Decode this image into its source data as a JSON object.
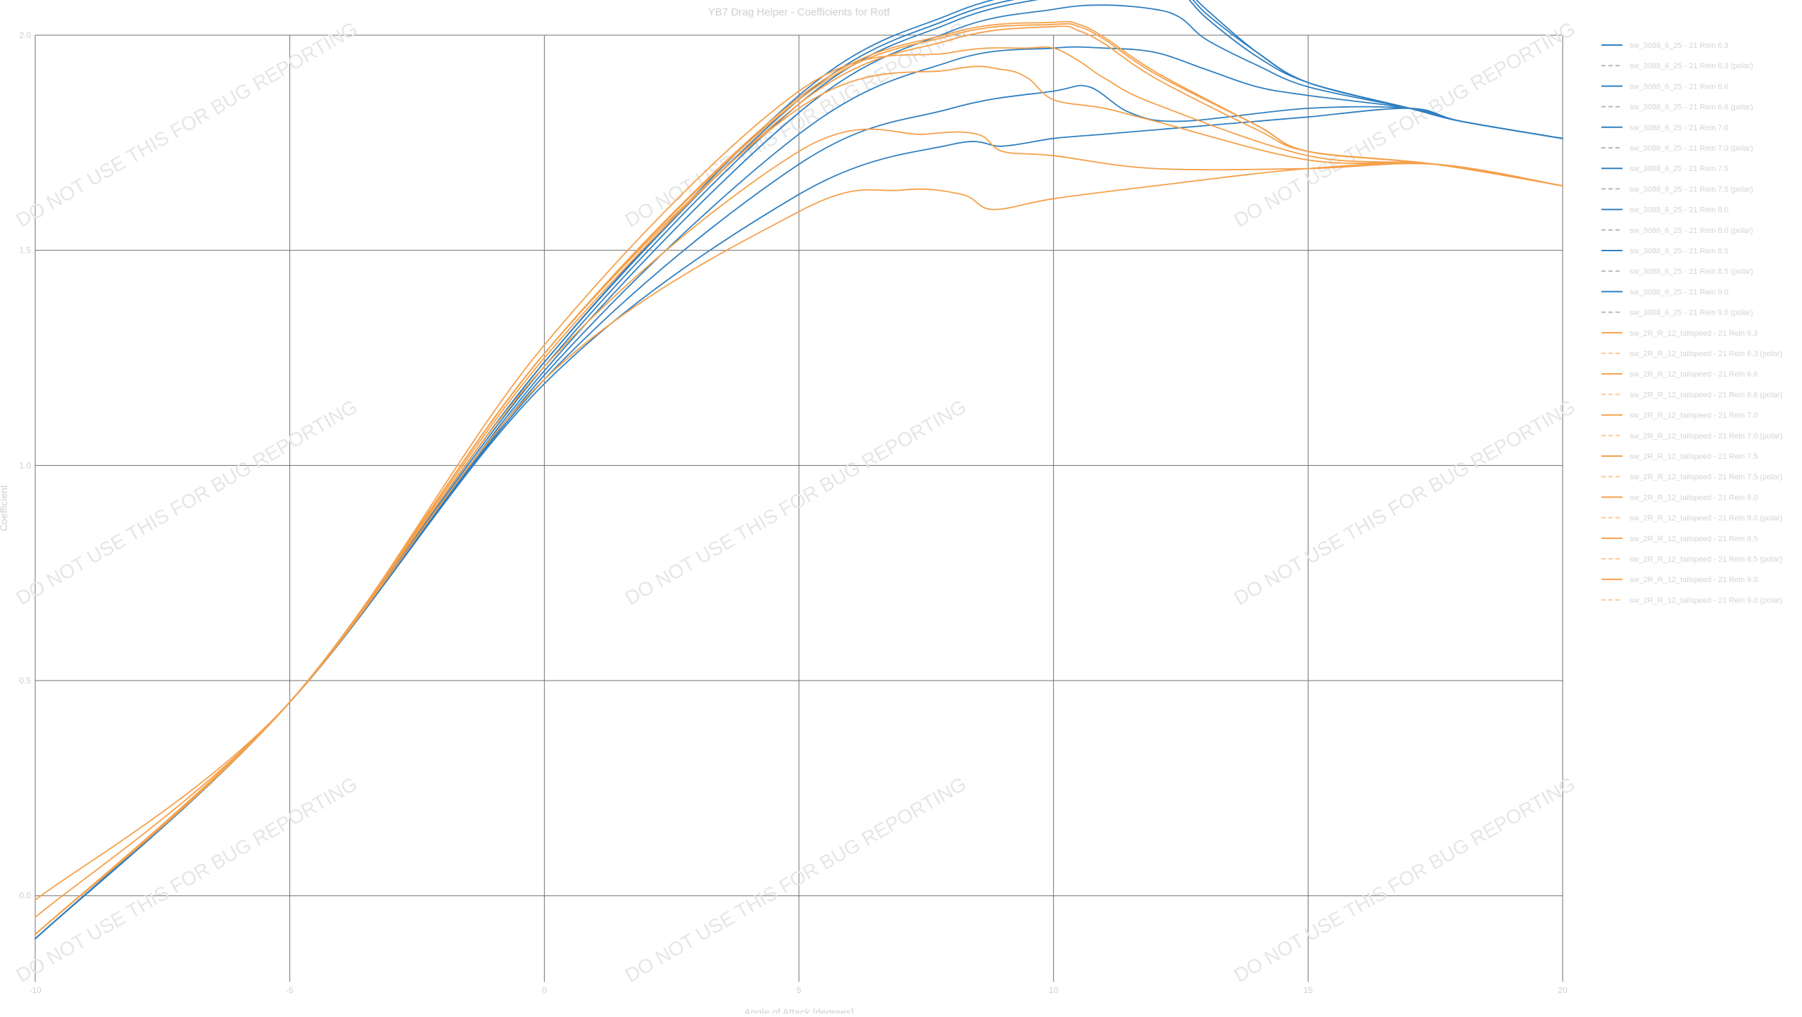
{
  "chart_data": {
    "type": "line",
    "title": "YB7 Drag Helper - Coefficients for Rotf",
    "xlabel": "Angle of Attack [degrees]",
    "ylabel": "Coefficient",
    "xlim": [
      -10,
      20
    ],
    "ylim": [
      -0.2,
      2.0
    ],
    "x_ticks": [
      -10,
      -5,
      0,
      5,
      10,
      15,
      20
    ],
    "y_ticks": [
      0.0,
      0.5,
      1.0,
      1.5,
      2.0
    ],
    "grid": true,
    "legend_position": "top-right",
    "watermark": "DO NOT USE THIS FOR BUG REPORTING",
    "colors": {
      "blue": "#2f7fc1",
      "orange": "#f5a04a",
      "gray": "#b8b8b8",
      "gridline": "#6f6f6f"
    },
    "series": [
      {
        "name": "sw_3088_6_25 - 21 Rein 6.3",
        "color": "#2f7fc1",
        "style": "solid",
        "points": [
          [
            -10,
            -0.1
          ],
          [
            -5,
            0.45
          ],
          [
            0,
            1.19
          ],
          [
            5,
            1.63
          ],
          [
            8,
            1.746
          ],
          [
            9,
            1.742
          ],
          [
            10,
            1.76
          ],
          [
            11,
            1.77
          ],
          [
            12,
            1.78
          ],
          [
            13,
            1.79
          ],
          [
            14,
            1.8
          ],
          [
            15,
            1.81
          ],
          [
            17,
            1.83
          ],
          [
            18,
            1.8
          ],
          [
            20,
            1.76
          ]
        ]
      },
      {
        "name": "sw_3088_6_25 - 21 Rein 6.3 (polar)",
        "color": "#b8b8b8",
        "style": "dashed",
        "points": []
      },
      {
        "name": "sw_3088_6_25 - 21 Rein 6.6",
        "color": "#2f7fc1",
        "style": "solid",
        "points": [
          [
            -10,
            -0.1
          ],
          [
            -5,
            0.45
          ],
          [
            0,
            1.2
          ],
          [
            5,
            1.7
          ],
          [
            8,
            1.83
          ],
          [
            10,
            1.87
          ],
          [
            10.7,
            1.88
          ],
          [
            11.5,
            1.82
          ],
          [
            12.5,
            1.8
          ],
          [
            15,
            1.83
          ],
          [
            17,
            1.83
          ],
          [
            18,
            1.8
          ],
          [
            20,
            1.76
          ]
        ]
      },
      {
        "name": "sw_3088_6_25 - 21 Rein 6.6 (polar)",
        "color": "#b8b8b8",
        "style": "dashed",
        "points": []
      },
      {
        "name": "sw_3088_6_25 - 21 Rein 7.0",
        "color": "#2f7fc1",
        "style": "solid",
        "points": [
          [
            -10,
            -0.1
          ],
          [
            -5,
            0.45
          ],
          [
            0,
            1.21
          ],
          [
            5,
            1.77
          ],
          [
            8,
            1.94
          ],
          [
            10,
            1.97
          ],
          [
            11,
            1.97
          ],
          [
            12,
            1.96
          ],
          [
            13,
            1.92
          ],
          [
            14,
            1.88
          ],
          [
            15,
            1.86
          ],
          [
            17,
            1.83
          ],
          [
            18,
            1.8
          ],
          [
            20,
            1.76
          ]
        ]
      },
      {
        "name": "sw_3088_6_25 - 21 Rein 7.0 (polar)",
        "color": "#b8b8b8",
        "style": "dashed",
        "points": []
      },
      {
        "name": "sw_3088_6_25 - 21 Rein 7.5",
        "color": "#2f7fc1",
        "style": "solid",
        "points": [
          [
            -10,
            -0.1
          ],
          [
            -5,
            0.45
          ],
          [
            0,
            1.22
          ],
          [
            5,
            1.82
          ],
          [
            8,
            2.01
          ],
          [
            10,
            2.06
          ],
          [
            11,
            2.07
          ],
          [
            12,
            2.06
          ],
          [
            12.5,
            2.04
          ],
          [
            13,
            1.99
          ],
          [
            14,
            1.93
          ],
          [
            15,
            1.88
          ],
          [
            17,
            1.83
          ],
          [
            18,
            1.8
          ],
          [
            20,
            1.76
          ]
        ]
      },
      {
        "name": "sw_3088_6_25 - 21 Rein 7.5 (polar)",
        "color": "#b8b8b8",
        "style": "dashed",
        "points": []
      },
      {
        "name": "sw_3088_6_25 - 21 Rein 8.0",
        "color": "#2f7fc1",
        "style": "solid",
        "points": [
          [
            -10,
            -0.1
          ],
          [
            -5,
            0.45
          ],
          [
            0,
            1.23
          ],
          [
            5,
            1.84
          ],
          [
            8,
            2.03
          ],
          [
            10,
            2.09
          ],
          [
            11,
            2.11
          ],
          [
            12,
            2.11
          ],
          [
            12.5,
            2.1
          ],
          [
            13,
            2.04
          ],
          [
            14,
            1.95
          ],
          [
            15,
            1.89
          ],
          [
            17,
            1.83
          ],
          [
            18,
            1.8
          ],
          [
            20,
            1.76
          ]
        ]
      },
      {
        "name": "sw_3088_6_25 - 21 Rein 8.0 (polar)",
        "color": "#b8b8b8",
        "style": "dashed",
        "points": []
      },
      {
        "name": "sw_3088_6_25 - 21 Rein 8.5",
        "color": "#2f7fc1",
        "style": "solid",
        "points": [
          [
            -10,
            -0.1
          ],
          [
            -5,
            0.45
          ],
          [
            0,
            1.24
          ],
          [
            5,
            1.85
          ],
          [
            8,
            2.04
          ],
          [
            10,
            2.1
          ],
          [
            11,
            2.12
          ],
          [
            12,
            2.12
          ],
          [
            12.5,
            2.11
          ],
          [
            13,
            2.05
          ],
          [
            14,
            1.96
          ],
          [
            15,
            1.89
          ],
          [
            17,
            1.83
          ],
          [
            18,
            1.8
          ],
          [
            20,
            1.76
          ]
        ]
      },
      {
        "name": "sw_3088_6_25 - 21 Rein 8.5 (polar)",
        "color": "#b8b8b8",
        "style": "dashed",
        "points": []
      },
      {
        "name": "sw_3088_6_25 - 21 Rein 9.0",
        "color": "#2f7fc1",
        "style": "solid",
        "points": [
          [
            -10,
            -0.1
          ],
          [
            -5,
            0.45
          ],
          [
            0,
            1.24
          ],
          [
            5,
            1.86
          ],
          [
            8,
            2.05
          ],
          [
            10,
            2.11
          ],
          [
            11,
            2.125
          ],
          [
            12,
            2.125
          ],
          [
            12.5,
            2.115
          ],
          [
            13,
            2.06
          ],
          [
            14,
            1.96
          ],
          [
            15,
            1.89
          ],
          [
            17,
            1.83
          ],
          [
            18,
            1.8
          ],
          [
            20,
            1.76
          ]
        ]
      },
      {
        "name": "sw_3088_6_25 - 21 Rein 9.0 (polar)",
        "color": "#b8b8b8",
        "style": "dashed",
        "points": []
      },
      {
        "name": "sw_2R_R_12_tailspeed - 21 Rein 6.3",
        "color": "#f5a04a",
        "style": "solid",
        "points": [
          [
            -10,
            -0.09
          ],
          [
            -5,
            0.45
          ],
          [
            0,
            1.2
          ],
          [
            5,
            1.59
          ],
          [
            7,
            1.64
          ],
          [
            8.2,
            1.63
          ],
          [
            8.8,
            1.595
          ],
          [
            10,
            1.62
          ],
          [
            12,
            1.65
          ],
          [
            15,
            1.69
          ],
          [
            17.5,
            1.7
          ],
          [
            20,
            1.65
          ]
        ]
      },
      {
        "name": "sw_2R_R_12_tailspeed - 21 Rein 6.3 (polar)",
        "color": "#f9c996",
        "style": "dashed",
        "points": []
      },
      {
        "name": "sw_2R_R_12_tailspeed - 21 Rein 6.6",
        "color": "#f5a04a",
        "style": "solid",
        "points": [
          [
            -10,
            -0.09
          ],
          [
            -5,
            0.45
          ],
          [
            0,
            1.23
          ],
          [
            5,
            1.73
          ],
          [
            7.5,
            1.77
          ],
          [
            8.5,
            1.77
          ],
          [
            9,
            1.73
          ],
          [
            10,
            1.72
          ],
          [
            12,
            1.69
          ],
          [
            15,
            1.69
          ],
          [
            17.5,
            1.7
          ],
          [
            20,
            1.65
          ]
        ]
      },
      {
        "name": "sw_2R_R_12_tailspeed - 21 Rein 6.6 (polar)",
        "color": "#f9c996",
        "style": "dashed",
        "points": []
      },
      {
        "name": "sw_2R_R_12_tailspeed - 21 Rein 7.0",
        "color": "#f5a04a",
        "style": "solid",
        "points": [
          [
            -10,
            -0.05
          ],
          [
            -5,
            0.45
          ],
          [
            0,
            1.26
          ],
          [
            5,
            1.83
          ],
          [
            8,
            1.92
          ],
          [
            9,
            1.92
          ],
          [
            9.5,
            1.9
          ],
          [
            10,
            1.85
          ],
          [
            11,
            1.83
          ],
          [
            12,
            1.8
          ],
          [
            15,
            1.71
          ],
          [
            17.5,
            1.7
          ],
          [
            20,
            1.65
          ]
        ]
      },
      {
        "name": "sw_2R_R_12_tailspeed - 21 Rein 7.0 (polar)",
        "color": "#f9c996",
        "style": "dashed",
        "points": []
      },
      {
        "name": "sw_2R_R_12_tailspeed - 21 Rein 7.5",
        "color": "#f5a04a",
        "style": "solid",
        "points": [
          [
            -10,
            -0.01
          ],
          [
            -5,
            0.45
          ],
          [
            0,
            1.28
          ],
          [
            5,
            1.87
          ],
          [
            8,
            1.96
          ],
          [
            9.5,
            1.97
          ],
          [
            10,
            1.97
          ],
          [
            10.5,
            1.94
          ],
          [
            11,
            1.9
          ],
          [
            12,
            1.84
          ],
          [
            15,
            1.72
          ],
          [
            17.5,
            1.7
          ],
          [
            20,
            1.65
          ]
        ]
      },
      {
        "name": "sw_2R_R_12_tailspeed - 21 Rein 7.5 (polar)",
        "color": "#f9c996",
        "style": "dashed",
        "points": []
      },
      {
        "name": "sw_2R_R_12_tailspeed - 21 Rein 8.0",
        "color": "#f5a04a",
        "style": "solid",
        "points": [
          [
            -10,
            -0.09
          ],
          [
            -5,
            0.45
          ],
          [
            0,
            1.25
          ],
          [
            5,
            1.84
          ],
          [
            8,
            1.99
          ],
          [
            10,
            2.02
          ],
          [
            10.5,
            2.01
          ],
          [
            11,
            1.98
          ],
          [
            12,
            1.9
          ],
          [
            14,
            1.78
          ],
          [
            15,
            1.73
          ],
          [
            17.5,
            1.7
          ],
          [
            20,
            1.65
          ]
        ]
      },
      {
        "name": "sw_2R_R_12_tailspeed - 21 Rein 8.0 (polar)",
        "color": "#f9c996",
        "style": "dashed",
        "points": []
      },
      {
        "name": "sw_2R_R_12_tailspeed - 21 Rein 8.5",
        "color": "#f5a04a",
        "style": "solid",
        "points": [
          [
            -10,
            -0.09
          ],
          [
            -5,
            0.45
          ],
          [
            0,
            1.26
          ],
          [
            5,
            1.85
          ],
          [
            8,
            2.0
          ],
          [
            10,
            2.025
          ],
          [
            10.5,
            2.02
          ],
          [
            11,
            1.99
          ],
          [
            12,
            1.91
          ],
          [
            14,
            1.79
          ],
          [
            15,
            1.73
          ],
          [
            17.5,
            1.7
          ],
          [
            20,
            1.65
          ]
        ]
      },
      {
        "name": "sw_2R_R_12_tailspeed - 21 Rein 8.5 (polar)",
        "color": "#f9c996",
        "style": "dashed",
        "points": []
      },
      {
        "name": "sw_2R_R_12_tailspeed - 21 Rein 9.0",
        "color": "#f5a04a",
        "style": "solid",
        "points": [
          [
            -10,
            -0.09
          ],
          [
            -5,
            0.45
          ],
          [
            0,
            1.26
          ],
          [
            5,
            1.855
          ],
          [
            8,
            2.005
          ],
          [
            10,
            2.03
          ],
          [
            10.5,
            2.025
          ],
          [
            11,
            1.995
          ],
          [
            12,
            1.915
          ],
          [
            14,
            1.79
          ],
          [
            15,
            1.73
          ],
          [
            17.5,
            1.7
          ],
          [
            20,
            1.65
          ]
        ]
      },
      {
        "name": "sw_2R_R_12_tailspeed - 21 Rein 9.0 (polar)",
        "color": "#f9c996",
        "style": "dashed",
        "points": []
      }
    ]
  }
}
